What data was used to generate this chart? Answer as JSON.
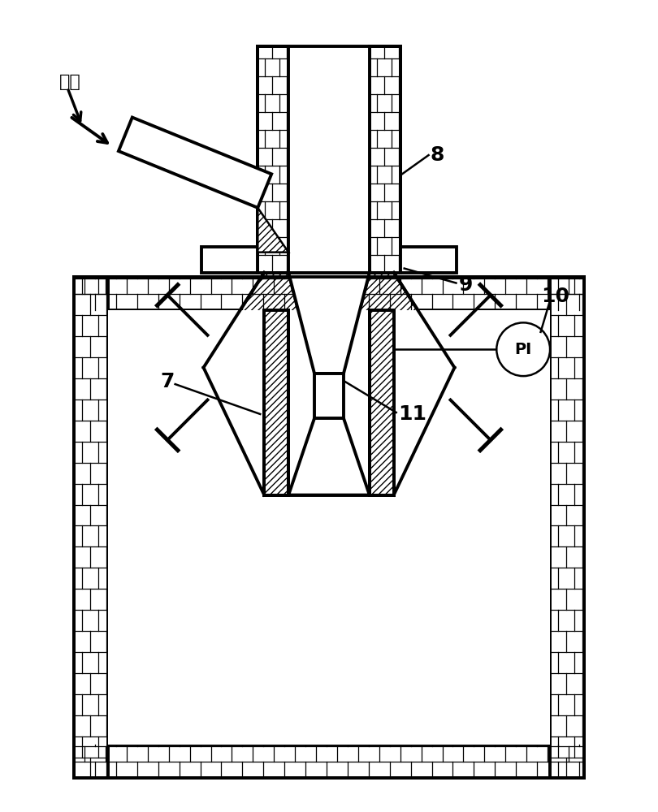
{
  "bg_color": "#ffffff",
  "label_yuanliao": "原料",
  "label_8": "8",
  "label_9": "9",
  "label_7": "7",
  "label_10": "10",
  "label_11": "11",
  "label_PI": "PI",
  "figsize": [
    8.1,
    10.0
  ],
  "dpi": 100
}
